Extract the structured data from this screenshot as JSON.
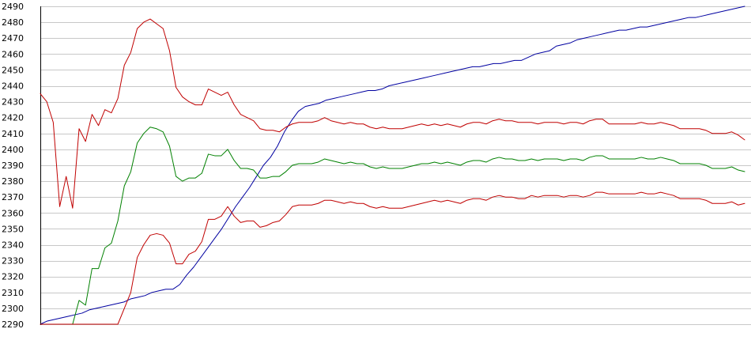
{
  "chart_data": {
    "type": "line",
    "title": "",
    "xlabel": "",
    "ylabel": "",
    "ylim": [
      2290,
      2490
    ],
    "yticks": [
      2290,
      2300,
      2310,
      2320,
      2330,
      2340,
      2350,
      2360,
      2370,
      2380,
      2390,
      2400,
      2410,
      2420,
      2430,
      2440,
      2450,
      2460,
      2470,
      2480,
      2490
    ],
    "grid": "horizontal",
    "legend": "none",
    "series": [
      {
        "color": "#0000a0",
        "values": [
          2290,
          2292,
          2293,
          2294,
          2295,
          2296,
          2297,
          2299,
          2300,
          2301,
          2302,
          2303,
          2304,
          2306,
          2307,
          2308,
          2310,
          2311,
          2312,
          2312,
          2315,
          2321,
          2326,
          2332,
          2338,
          2344,
          2350,
          2357,
          2364,
          2370,
          2376,
          2383,
          2390,
          2395,
          2402,
          2411,
          2418,
          2424,
          2427,
          2428,
          2429,
          2431,
          2432,
          2433,
          2434,
          2435,
          2436,
          2437,
          2437,
          2438,
          2440,
          2441,
          2442,
          2443,
          2444,
          2445,
          2446,
          2447,
          2448,
          2449,
          2450,
          2451,
          2452,
          2452,
          2453,
          2454,
          2454,
          2455,
          2456,
          2456,
          2458,
          2460,
          2461,
          2462,
          2465,
          2466,
          2467,
          2469,
          2470,
          2471,
          2472,
          2473,
          2474,
          2475,
          2475,
          2476,
          2477,
          2477,
          2478,
          2479,
          2480,
          2481,
          2482,
          2483,
          2483,
          2484,
          2485,
          2486,
          2487,
          2488,
          2489,
          2490
        ]
      },
      {
        "color": "#c00000",
        "values": [
          2435,
          2430,
          2417,
          2364,
          2383,
          2363,
          2413,
          2405,
          2422,
          2415,
          2425,
          2423,
          2432,
          2453,
          2461,
          2476,
          2480,
          2482,
          2479,
          2476,
          2462,
          2439,
          2433,
          2430,
          2428,
          2428,
          2438,
          2436,
          2434,
          2436,
          2428,
          2422,
          2420,
          2418,
          2413,
          2412,
          2412,
          2411,
          2414,
          2416,
          2417,
          2417,
          2417,
          2418,
          2420,
          2418,
          2417,
          2416,
          2417,
          2416,
          2416,
          2414,
          2413,
          2414,
          2413,
          2413,
          2413,
          2414,
          2415,
          2416,
          2415,
          2416,
          2415,
          2416,
          2415,
          2414,
          2416,
          2417,
          2417,
          2416,
          2418,
          2419,
          2418,
          2418,
          2417,
          2417,
          2417,
          2416,
          2417,
          2417,
          2417,
          2416,
          2417,
          2417,
          2416,
          2418,
          2419,
          2419,
          2416,
          2416,
          2416,
          2416,
          2416,
          2417,
          2416,
          2416,
          2417,
          2416,
          2415,
          2413,
          2413,
          2413,
          2413,
          2412,
          2410,
          2410,
          2410,
          2411,
          2409,
          2406
        ]
      },
      {
        "color": "#008000",
        "values": [
          2290,
          2290,
          2290,
          2290,
          2290,
          2290,
          2305,
          2302,
          2325,
          2325,
          2338,
          2341,
          2355,
          2377,
          2386,
          2404,
          2410,
          2414,
          2413,
          2411,
          2402,
          2383,
          2380,
          2382,
          2382,
          2385,
          2397,
          2396,
          2396,
          2400,
          2393,
          2388,
          2388,
          2387,
          2382,
          2382,
          2383,
          2383,
          2386,
          2390,
          2391,
          2391,
          2391,
          2392,
          2394,
          2393,
          2392,
          2391,
          2392,
          2391,
          2391,
          2389,
          2388,
          2389,
          2388,
          2388,
          2388,
          2389,
          2390,
          2391,
          2391,
          2392,
          2391,
          2392,
          2391,
          2390,
          2392,
          2393,
          2393,
          2392,
          2394,
          2395,
          2394,
          2394,
          2393,
          2393,
          2394,
          2393,
          2394,
          2394,
          2394,
          2393,
          2394,
          2394,
          2393,
          2395,
          2396,
          2396,
          2394,
          2394,
          2394,
          2394,
          2394,
          2395,
          2394,
          2394,
          2395,
          2394,
          2393,
          2391,
          2391,
          2391,
          2391,
          2390,
          2388,
          2388,
          2388,
          2389,
          2387,
          2386
        ]
      },
      {
        "color": "#c00000",
        "values": [
          2290,
          2290,
          2290,
          2290,
          2290,
          2290,
          2290,
          2290,
          2290,
          2290,
          2290,
          2290,
          2290,
          2300,
          2310,
          2332,
          2340,
          2346,
          2347,
          2346,
          2341,
          2328,
          2328,
          2334,
          2336,
          2342,
          2356,
          2356,
          2358,
          2364,
          2358,
          2354,
          2355,
          2355,
          2351,
          2352,
          2354,
          2355,
          2359,
          2364,
          2365,
          2365,
          2365,
          2366,
          2368,
          2368,
          2367,
          2366,
          2367,
          2366,
          2366,
          2364,
          2363,
          2364,
          2363,
          2363,
          2363,
          2364,
          2365,
          2366,
          2367,
          2368,
          2367,
          2368,
          2367,
          2366,
          2368,
          2369,
          2369,
          2368,
          2370,
          2371,
          2370,
          2370,
          2369,
          2369,
          2371,
          2370,
          2371,
          2371,
          2371,
          2370,
          2371,
          2371,
          2370,
          2371,
          2373,
          2373,
          2372,
          2372,
          2372,
          2372,
          2372,
          2373,
          2372,
          2372,
          2373,
          2372,
          2371,
          2369,
          2369,
          2369,
          2369,
          2368,
          2366,
          2366,
          2366,
          2367,
          2365,
          2366
        ]
      }
    ]
  }
}
